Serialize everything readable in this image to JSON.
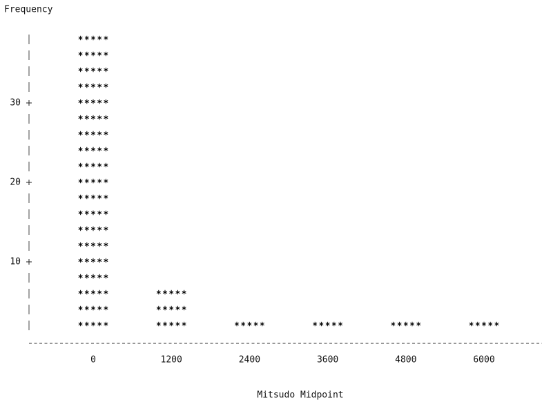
{
  "chart_data": {
    "type": "bar",
    "y_label": "Frequency",
    "x_label": "Mitsudo Midpoint",
    "categories": [
      "0",
      "1200",
      "2400",
      "3600",
      "4800",
      "6000"
    ],
    "values": [
      38,
      6,
      2,
      2,
      2,
      2
    ],
    "color": "#000000",
    "ylim": [
      0,
      40
    ],
    "yticks": [
      10,
      20,
      30
    ]
  }
}
